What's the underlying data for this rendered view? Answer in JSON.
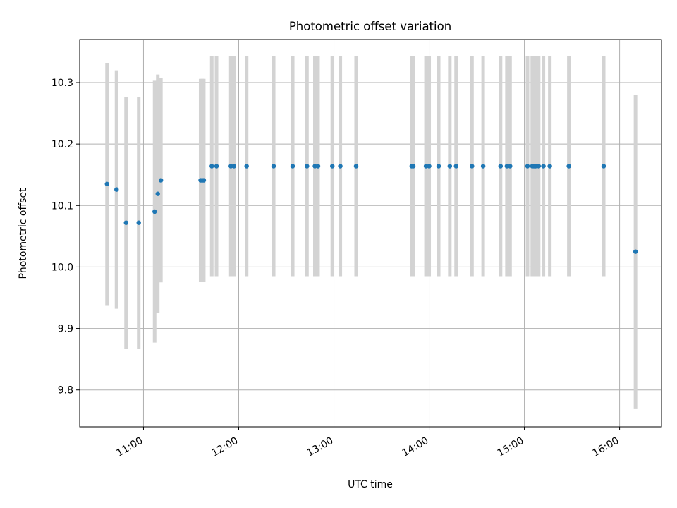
{
  "chart_data": {
    "type": "scatter",
    "title": "Photometric offset variation",
    "xlabel": "UTC time",
    "ylabel": "Photometric offset",
    "xlim_hours": [
      10.33,
      16.44
    ],
    "ylim": [
      9.74,
      10.37
    ],
    "grid": true,
    "x_ticks": [
      {
        "value": 11,
        "label": "11:00"
      },
      {
        "value": 12,
        "label": "12:00"
      },
      {
        "value": 13,
        "label": "13:00"
      },
      {
        "value": 14,
        "label": "14:00"
      },
      {
        "value": 15,
        "label": "15:00"
      },
      {
        "value": 16,
        "label": "16:00"
      }
    ],
    "y_ticks": [
      {
        "value": 9.8,
        "label": "9.8"
      },
      {
        "value": 9.9,
        "label": "9.9"
      },
      {
        "value": 10.0,
        "label": "10.0"
      },
      {
        "value": 10.1,
        "label": "10.1"
      },
      {
        "value": 10.2,
        "label": "10.2"
      },
      {
        "value": 10.3,
        "label": "10.3"
      }
    ],
    "colors": {
      "point": "#1f77b4",
      "errorbar": "#d3d3d3",
      "grid": "#b0b0b0"
    },
    "points_time_hours": [
      10.617,
      10.717,
      10.817,
      10.95,
      11.117,
      11.15,
      11.183,
      11.6,
      11.617,
      11.633,
      11.717,
      11.767,
      11.917,
      11.95,
      12.083,
      12.367,
      12.567,
      12.717,
      12.8,
      12.833,
      12.983,
      13.067,
      13.233,
      13.817,
      13.833,
      13.967,
      14.0,
      14.1,
      14.217,
      14.283,
      14.45,
      14.567,
      14.75,
      14.817,
      14.85,
      15.033,
      15.083,
      15.1,
      15.117,
      15.15,
      15.2,
      15.267,
      15.467,
      15.833,
      16.167
    ],
    "points_offset": [
      10.135,
      10.126,
      10.072,
      10.072,
      10.09,
      10.119,
      10.141,
      10.141,
      10.141,
      10.141,
      10.164,
      10.164,
      10.164,
      10.164,
      10.164,
      10.164,
      10.164,
      10.164,
      10.164,
      10.164,
      10.164,
      10.164,
      10.164,
      10.164,
      10.164,
      10.164,
      10.164,
      10.164,
      10.164,
      10.164,
      10.164,
      10.164,
      10.164,
      10.164,
      10.164,
      10.164,
      10.164,
      10.164,
      10.164,
      10.164,
      10.164,
      10.164,
      10.164,
      10.164,
      10.025
    ],
    "points_error": [
      0.197,
      0.194,
      0.205,
      0.205,
      0.213,
      0.194,
      0.166,
      0.165,
      0.165,
      0.165,
      0.179,
      0.179,
      0.179,
      0.179,
      0.179,
      0.179,
      0.179,
      0.179,
      0.179,
      0.179,
      0.179,
      0.179,
      0.179,
      0.179,
      0.179,
      0.179,
      0.179,
      0.179,
      0.179,
      0.179,
      0.179,
      0.179,
      0.179,
      0.179,
      0.179,
      0.179,
      0.179,
      0.179,
      0.179,
      0.179,
      0.179,
      0.179,
      0.179,
      0.179,
      0.255
    ]
  }
}
